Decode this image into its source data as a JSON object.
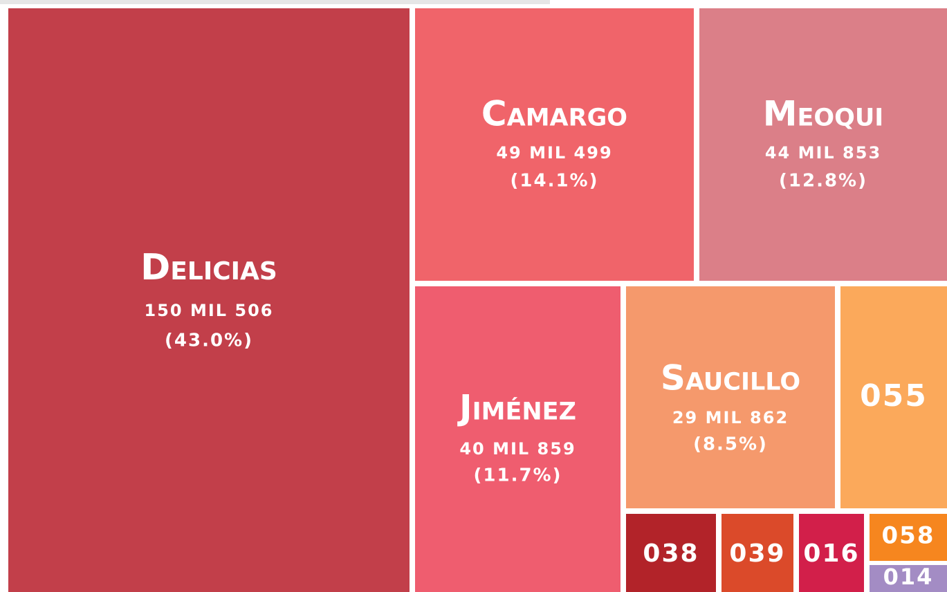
{
  "chart_data": {
    "type": "treemap",
    "categories": [
      "Delicias",
      "Camargo",
      "Meoqui",
      "Jiménez",
      "Saucillo",
      "055",
      "038",
      "039",
      "016",
      "058",
      "014"
    ],
    "values": [
      150506,
      49499,
      44853,
      40859,
      29862,
      15400,
      4500,
      3600,
      3250,
      2370,
      1500
    ],
    "value_labels": [
      "150 MIL 506",
      "49 MIL 499",
      "44 MIL 853",
      "40 MIL 859",
      "29 MIL 862",
      null,
      null,
      null,
      null,
      null,
      null
    ],
    "percent_labels": [
      "(43.0%)",
      "(14.1%)",
      "(12.8%)",
      "(11.7%)",
      "(8.5%)",
      null,
      null,
      null,
      null,
      null,
      null
    ],
    "colors": [
      "#c23f4a",
      "#f0646a",
      "#db7f88",
      "#ef5d6f",
      "#f5996c",
      "#fba95b",
      "#b22329",
      "#db4a2a",
      "#d21f4a",
      "#f6861f",
      "#a38cc4"
    ]
  }
}
